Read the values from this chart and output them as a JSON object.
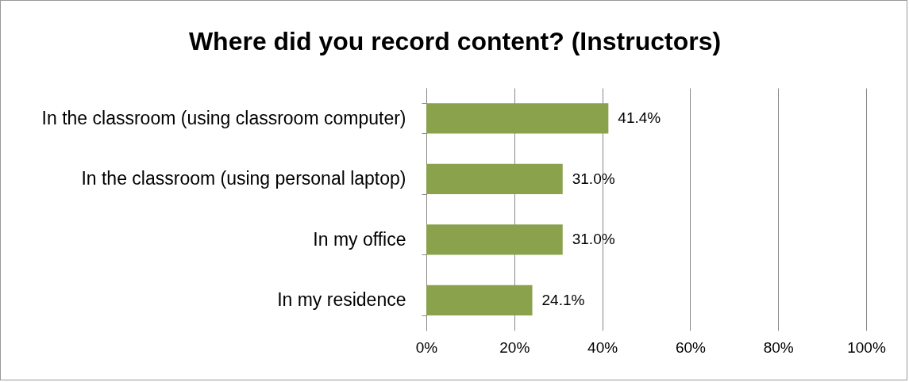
{
  "chart_data": {
    "type": "bar",
    "orientation": "horizontal",
    "title": "Where did you record content? (Instructors)",
    "categories": [
      "In the classroom (using classroom computer)",
      "In the classroom (using personal laptop)",
      "In my office",
      "In my residence"
    ],
    "values": [
      41.4,
      31.0,
      31.0,
      24.1
    ],
    "value_labels": [
      "41.4%",
      "31.0%",
      "31.0%",
      "24.1%"
    ],
    "color": "#8aa24c",
    "xlim": [
      0,
      100
    ],
    "xticks": [
      {
        "value": 0,
        "label": "0%"
      },
      {
        "value": 20,
        "label": "20%"
      },
      {
        "value": 40,
        "label": "40%"
      },
      {
        "value": 60,
        "label": "60%"
      },
      {
        "value": 80,
        "label": "80%"
      },
      {
        "value": 100,
        "label": "100%"
      }
    ],
    "grid": "x"
  }
}
